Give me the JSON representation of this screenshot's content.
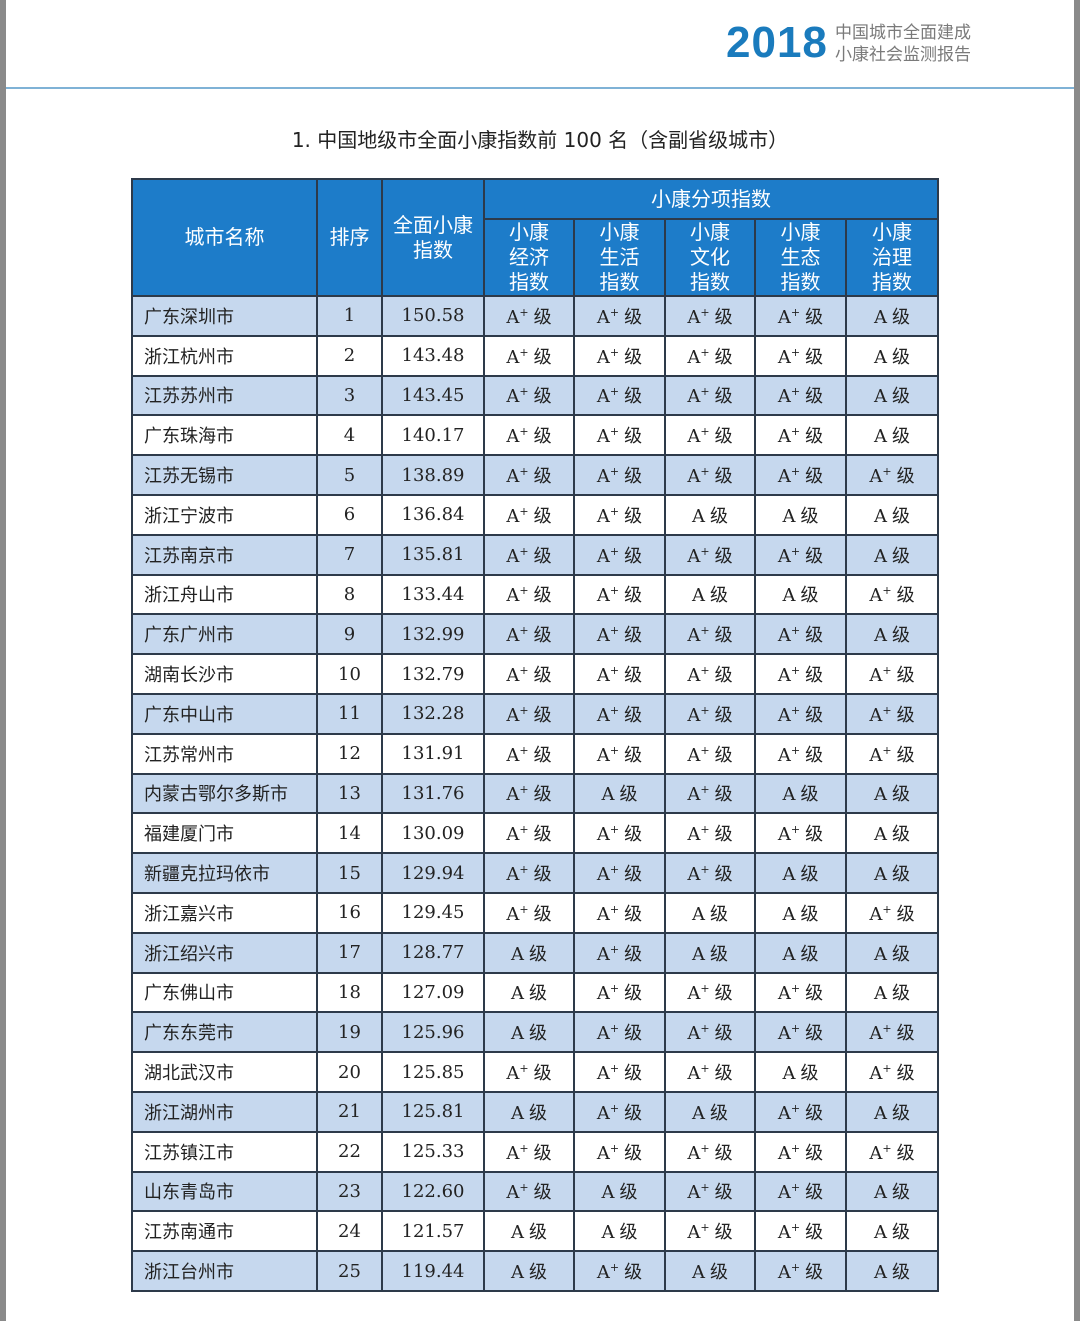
{
  "header": {
    "year": "2018",
    "subtitle_line1": "中国城市全面建成",
    "subtitle_line2": "小康社会监测报告",
    "accent_color": "#1a7bbd"
  },
  "title": "1. 中国地级市全面小康指数前 100 名（含副省级城市）",
  "table": {
    "columns": {
      "city": "城市名称",
      "rank": "排序",
      "index": "全面小康指数",
      "sub_group": "小康分项指数",
      "sub": [
        "小康经济指数",
        "小康生活指数",
        "小康文化指数",
        "小康生态指数",
        "小康治理指数"
      ]
    },
    "grade_suffix": "级",
    "rows": [
      {
        "city": "广东深圳市",
        "rank": "1",
        "index": "150.58",
        "grades": [
          "A+",
          "A+",
          "A+",
          "A+",
          "A"
        ]
      },
      {
        "city": "浙江杭州市",
        "rank": "2",
        "index": "143.48",
        "grades": [
          "A+",
          "A+",
          "A+",
          "A+",
          "A"
        ]
      },
      {
        "city": "江苏苏州市",
        "rank": "3",
        "index": "143.45",
        "grades": [
          "A+",
          "A+",
          "A+",
          "A+",
          "A"
        ]
      },
      {
        "city": "广东珠海市",
        "rank": "4",
        "index": "140.17",
        "grades": [
          "A+",
          "A+",
          "A+",
          "A+",
          "A"
        ]
      },
      {
        "city": "江苏无锡市",
        "rank": "5",
        "index": "138.89",
        "grades": [
          "A+",
          "A+",
          "A+",
          "A+",
          "A+"
        ]
      },
      {
        "city": "浙江宁波市",
        "rank": "6",
        "index": "136.84",
        "grades": [
          "A+",
          "A+",
          "A",
          "A",
          "A"
        ]
      },
      {
        "city": "江苏南京市",
        "rank": "7",
        "index": "135.81",
        "grades": [
          "A+",
          "A+",
          "A+",
          "A+",
          "A"
        ]
      },
      {
        "city": "浙江舟山市",
        "rank": "8",
        "index": "133.44",
        "grades": [
          "A+",
          "A+",
          "A",
          "A",
          "A+"
        ]
      },
      {
        "city": "广东广州市",
        "rank": "9",
        "index": "132.99",
        "grades": [
          "A+",
          "A+",
          "A+",
          "A+",
          "A"
        ]
      },
      {
        "city": "湖南长沙市",
        "rank": "10",
        "index": "132.79",
        "grades": [
          "A+",
          "A+",
          "A+",
          "A+",
          "A+"
        ]
      },
      {
        "city": "广东中山市",
        "rank": "11",
        "index": "132.28",
        "grades": [
          "A+",
          "A+",
          "A+",
          "A+",
          "A+"
        ]
      },
      {
        "city": "江苏常州市",
        "rank": "12",
        "index": "131.91",
        "grades": [
          "A+",
          "A+",
          "A+",
          "A+",
          "A+"
        ]
      },
      {
        "city": "内蒙古鄂尔多斯市",
        "rank": "13",
        "index": "131.76",
        "grades": [
          "A+",
          "A",
          "A+",
          "A",
          "A"
        ]
      },
      {
        "city": "福建厦门市",
        "rank": "14",
        "index": "130.09",
        "grades": [
          "A+",
          "A+",
          "A+",
          "A+",
          "A"
        ]
      },
      {
        "city": "新疆克拉玛依市",
        "rank": "15",
        "index": "129.94",
        "grades": [
          "A+",
          "A+",
          "A+",
          "A",
          "A"
        ]
      },
      {
        "city": "浙江嘉兴市",
        "rank": "16",
        "index": "129.45",
        "grades": [
          "A+",
          "A+",
          "A",
          "A",
          "A+"
        ]
      },
      {
        "city": "浙江绍兴市",
        "rank": "17",
        "index": "128.77",
        "grades": [
          "A",
          "A+",
          "A",
          "A",
          "A"
        ]
      },
      {
        "city": "广东佛山市",
        "rank": "18",
        "index": "127.09",
        "grades": [
          "A",
          "A+",
          "A+",
          "A+",
          "A"
        ]
      },
      {
        "city": "广东东莞市",
        "rank": "19",
        "index": "125.96",
        "grades": [
          "A",
          "A+",
          "A+",
          "A+",
          "A+"
        ]
      },
      {
        "city": "湖北武汉市",
        "rank": "20",
        "index": "125.85",
        "grades": [
          "A+",
          "A+",
          "A+",
          "A",
          "A+"
        ]
      },
      {
        "city": "浙江湖州市",
        "rank": "21",
        "index": "125.81",
        "grades": [
          "A",
          "A+",
          "A",
          "A+",
          "A"
        ]
      },
      {
        "city": "江苏镇江市",
        "rank": "22",
        "index": "125.33",
        "grades": [
          "A+",
          "A+",
          "A+",
          "A+",
          "A+"
        ]
      },
      {
        "city": "山东青岛市",
        "rank": "23",
        "index": "122.60",
        "grades": [
          "A+",
          "A",
          "A+",
          "A+",
          "A"
        ]
      },
      {
        "city": "江苏南通市",
        "rank": "24",
        "index": "121.57",
        "grades": [
          "A",
          "A",
          "A+",
          "A+",
          "A"
        ]
      },
      {
        "city": "浙江台州市",
        "rank": "25",
        "index": "119.44",
        "grades": [
          "A",
          "A+",
          "A",
          "A+",
          "A"
        ]
      }
    ]
  }
}
